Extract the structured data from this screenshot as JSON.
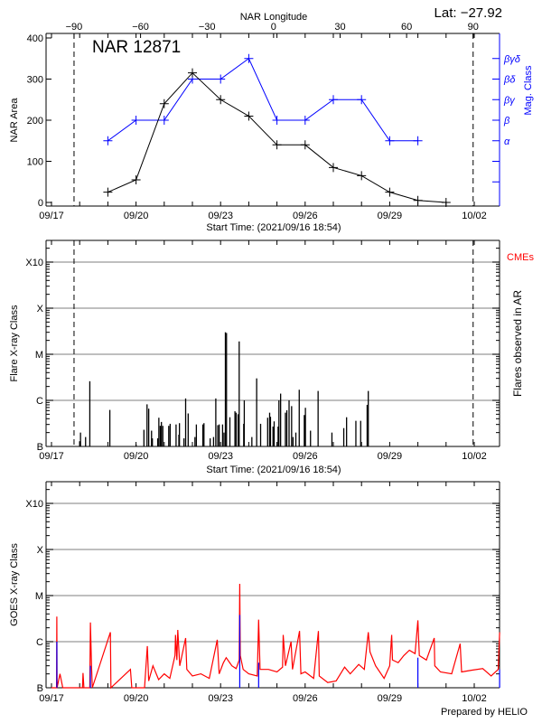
{
  "colors": {
    "area": "#000000",
    "mag_class": "#0000ff",
    "goes_long": "#ff0000",
    "goes_short": "#0000ff",
    "grid": "#999999",
    "cme_label": "#ff0000"
  },
  "footer": "Prepared by HELIO",
  "x_ticks": [
    "09/17",
    "09/20",
    "09/23",
    "09/26",
    "09/29",
    "10/02"
  ],
  "chart_data": [
    {
      "type": "line",
      "title": "NAR 12871",
      "annotation": "Lat: −27.92",
      "x_top_label": "NAR Longitude",
      "x_top_ticks": [
        -90,
        -60,
        -30,
        0,
        30,
        60,
        90
      ],
      "xlabel": "Start Time: (2021/09/16 18:54)",
      "ylabel": "NAR Area",
      "ylim": [
        0,
        400
      ],
      "yticks": [
        0,
        100,
        200,
        300,
        400
      ],
      "y2label": "Mag. Class",
      "y2_ticks": [
        {
          "label": "α",
          "level": 150
        },
        {
          "label": "β",
          "level": 200
        },
        {
          "label": "βγ",
          "level": 250
        },
        {
          "label": "βδ",
          "level": 300
        },
        {
          "label": "βγδ",
          "level": 350
        }
      ],
      "dashed_longitudes": [
        -90,
        90
      ],
      "area": {
        "dates": [
          "09/19",
          "09/20",
          "09/21",
          "09/22",
          "09/23",
          "09/24",
          "09/25",
          "09/26",
          "09/27",
          "09/28",
          "09/29",
          "09/30",
          "10/01"
        ],
        "values": [
          25,
          55,
          240,
          315,
          250,
          210,
          140,
          140,
          85,
          65,
          25,
          5,
          0
        ]
      },
      "mag_class": {
        "dates": [
          "09/19",
          "09/20",
          "09/21",
          "09/22",
          "09/23",
          "09/24",
          "09/25",
          "09/26",
          "09/27",
          "09/28",
          "09/29",
          "09/30"
        ],
        "values": [
          "α",
          "β",
          "β",
          "βδ",
          "βδ",
          "βγδ",
          "β",
          "β",
          "βγ",
          "βγ",
          "α",
          "α"
        ]
      }
    },
    {
      "type": "bar",
      "xlabel": "Start Time: (2021/09/16 18:54)",
      "ylabel": "Flare X-ray Class",
      "y2label": "Flares observed in AR",
      "cme_label": "CMEs",
      "yscale": "log",
      "yticks": [
        "B",
        "C",
        "M",
        "X",
        "X10"
      ],
      "grid": true,
      "dashed_longitudes": [
        -90,
        90
      ],
      "flares": [
        [
          "09/18 00:00",
          "B1.3"
        ],
        [
          "09/18 00:43",
          "B2.0"
        ],
        [
          "09/18 05:02",
          "B1.6"
        ],
        [
          "09/18 08:38",
          "C2.6"
        ],
        [
          "09/19 01:41",
          "B6.2"
        ],
        [
          "09/20 00:00",
          "B1.1"
        ],
        [
          "09/20 06:43",
          "B2.3"
        ],
        [
          "09/20 09:22",
          "B8.2"
        ],
        [
          "09/20 10:48",
          "B6.6"
        ],
        [
          "09/20 13:12",
          "B2.2"
        ],
        [
          "09/20 13:55",
          "B1.5"
        ],
        [
          "09/20 18:29",
          "B1.5"
        ],
        [
          "09/20 19:26",
          "B4.2"
        ],
        [
          "09/20 20:38",
          "B2.8"
        ],
        [
          "09/20 21:36",
          "B3.4"
        ],
        [
          "09/20 22:48",
          "B2.8"
        ],
        [
          "09/21 03:50",
          "B2.8"
        ],
        [
          "09/21 05:02",
          "B3.1"
        ],
        [
          "09/21 10:05",
          "B3.0"
        ],
        [
          "09/21 12:29",
          "B1.8"
        ],
        [
          "09/21 12:58",
          "B3.2"
        ],
        [
          "09/21 16:48",
          "B1.5"
        ],
        [
          "09/21 18:14",
          "C1.1"
        ],
        [
          "09/21 20:24",
          "B5.2"
        ],
        [
          "09/22 02:10",
          "B1.6"
        ],
        [
          "09/22 03:22",
          "B3.0"
        ],
        [
          "09/22 08:53",
          "B3.0"
        ],
        [
          "09/22 09:50",
          "B3.2"
        ],
        [
          "09/22 15:07",
          "B1.5"
        ],
        [
          "09/22 18:00",
          "B1.6"
        ],
        [
          "09/22 19:55",
          "C1.1"
        ],
        [
          "09/22 21:36",
          "B2.9"
        ],
        [
          "09/22 22:48",
          "B3.0"
        ],
        [
          "09/23 01:41",
          "B3.0"
        ],
        [
          "09/23 02:53",
          "B2.0"
        ],
        [
          "09/23 04:05",
          "M3.0"
        ],
        [
          "09/23 05:02",
          "M2.9"
        ],
        [
          "09/23 07:55",
          "B4.3"
        ],
        [
          "09/23 12:14",
          "B5.8"
        ],
        [
          "09/23 13:12",
          "B5.4"
        ],
        [
          "09/23 14:53",
          "B5.0"
        ],
        [
          "09/23 15:50",
          "M1.9"
        ],
        [
          "09/23 19:41",
          "B3.1"
        ],
        [
          "09/23 20:10",
          "C1.0"
        ],
        [
          "09/24 02:38",
          "B1.6"
        ],
        [
          "09/24 06:43",
          "C3.0"
        ],
        [
          "09/24 10:05",
          "B3.1"
        ],
        [
          "09/24 16:05",
          "B4.2"
        ],
        [
          "09/24 17:46",
          "B5.4"
        ],
        [
          "09/24 18:29",
          "B4.4"
        ],
        [
          "09/24 20:38",
          "B2.7"
        ],
        [
          "09/24 21:36",
          "B3.5"
        ],
        [
          "09/25 00:58",
          "B2.7"
        ],
        [
          "09/25 01:41",
          "C1.0"
        ],
        [
          "09/25 03:07",
          "C1.4"
        ],
        [
          "09/25 07:12",
          "B5.4"
        ],
        [
          "09/25 08:24",
          "B6.1"
        ],
        [
          "09/25 10:19",
          "C1.0"
        ],
        [
          "09/25 12:29",
          "B7.5"
        ],
        [
          "09/25 13:41",
          "B1.6"
        ],
        [
          "09/25 16:05",
          "B2.0"
        ],
        [
          "09/25 18:58",
          "C1.7"
        ],
        [
          "09/25 23:17",
          "B4.8"
        ],
        [
          "09/26 00:14",
          "B6.9"
        ],
        [
          "09/26 04:34",
          "B2.2"
        ],
        [
          "09/26 11:02",
          "C1.6"
        ],
        [
          "09/26 22:48",
          "B2.0"
        ],
        [
          "09/27 08:53",
          "B2.5"
        ],
        [
          "09/27 11:17",
          "B4.3"
        ],
        [
          "09/27 19:12",
          "B3.6"
        ],
        [
          "09/27 23:17",
          "B3.6"
        ],
        [
          "09/28 04:48",
          "B8.0"
        ],
        [
          "09/28 05:46",
          "C1.6"
        ]
      ]
    },
    {
      "type": "line",
      "ylabel": "GOES X-ray Class",
      "yscale": "log",
      "yticks": [
        "B",
        "C",
        "M",
        "X",
        "X10"
      ],
      "grid": true,
      "goes_long": [
        [
          "09/17 00:00",
          "B1.0"
        ],
        [
          "09/17 04:19",
          "B1.0"
        ],
        [
          "09/17 04:34",
          "C3.5"
        ],
        [
          "09/17 04:48",
          "B1.0"
        ],
        [
          "09/17 07:12",
          "B2.0"
        ],
        [
          "09/17 09:36",
          "B1.0"
        ],
        [
          "09/18 02:24",
          "B1.0"
        ],
        [
          "09/18 02:53",
          "B2.1"
        ],
        [
          "09/18 03:36",
          "B1.0"
        ],
        [
          "09/18 08:38",
          "B1.0"
        ],
        [
          "09/18 09:07",
          "C2.6"
        ],
        [
          "09/18 10:05",
          "B3.0"
        ],
        [
          "09/18 10:48",
          "B1.0"
        ],
        [
          "09/19 02:10",
          "C1.6"
        ],
        [
          "09/19 02:38",
          "B1.0"
        ],
        [
          "09/19 19:12",
          "B2.5"
        ],
        [
          "09/19 20:24",
          "B1.0"
        ],
        [
          "09/20 07:12",
          "B1.0"
        ],
        [
          "09/20 09:36",
          "B8.0"
        ],
        [
          "09/20 10:48",
          "B1.4"
        ],
        [
          "09/20 14:24",
          "B3.0"
        ],
        [
          "09/20 19:12",
          "B1.5"
        ],
        [
          "09/21 00:00",
          "B2.0"
        ],
        [
          "09/21 04:48",
          "B1.6"
        ],
        [
          "09/21 09:07",
          "B5.0"
        ],
        [
          "09/21 09:36",
          "C1.4"
        ],
        [
          "09/21 10:48",
          "B4.0"
        ],
        [
          "09/21 11:31",
          "C1.8"
        ],
        [
          "09/21 13:12",
          "B3.0"
        ],
        [
          "09/21 18:14",
          "C1.2"
        ],
        [
          "09/21 19:12",
          "B2.5"
        ],
        [
          "09/22 00:00",
          "B1.8"
        ],
        [
          "09/22 07:12",
          "B2.0"
        ],
        [
          "09/22 14:24",
          "B1.6"
        ],
        [
          "09/22 21:07",
          "C1.1"
        ],
        [
          "09/22 22:48",
          "B2.0"
        ],
        [
          "09/23 02:24",
          "B3.5"
        ],
        [
          "09/23 04:48",
          "B4.5"
        ],
        [
          "09/23 09:36",
          "B3.0"
        ],
        [
          "09/23 13:12",
          "B2.6"
        ],
        [
          "09/23 15:50",
          "B4.0"
        ],
        [
          "09/23 16:19",
          "M1.8"
        ],
        [
          "09/23 16:48",
          "B5.0"
        ],
        [
          "09/23 19:12",
          "B2.5"
        ],
        [
          "09/24 00:00",
          "B2.0"
        ],
        [
          "09/24 07:12",
          "B1.8"
        ],
        [
          "09/24 08:24",
          "C3.0"
        ],
        [
          "09/24 09:36",
          "B2.5"
        ],
        [
          "09/24 16:48",
          "B2.5"
        ],
        [
          "09/25 00:00",
          "B2.2"
        ],
        [
          "09/25 04:48",
          "B2.8"
        ],
        [
          "09/25 05:17",
          "C1.4"
        ],
        [
          "09/25 07:12",
          "B3.0"
        ],
        [
          "09/25 12:00",
          "C1.0"
        ],
        [
          "09/25 13:12",
          "B2.5"
        ],
        [
          "09/25 19:12",
          "C1.7"
        ],
        [
          "09/25 20:24",
          "B2.0"
        ],
        [
          "09/26 00:00",
          "B2.2"
        ],
        [
          "09/26 07:12",
          "B1.6"
        ],
        [
          "09/26 11:17",
          "C1.7"
        ],
        [
          "09/26 12:00",
          "B1.8"
        ],
        [
          "09/26 19:12",
          "B1.3"
        ],
        [
          "09/27 02:24",
          "B1.4"
        ],
        [
          "09/27 09:36",
          "B2.8"
        ],
        [
          "09/27 14:24",
          "B2.0"
        ],
        [
          "09/27 21:36",
          "B3.2"
        ],
        [
          "09/28 02:24",
          "B2.5"
        ],
        [
          "09/28 05:46",
          "C1.6"
        ],
        [
          "09/28 07:12",
          "B6.0"
        ],
        [
          "09/28 12:00",
          "B3.0"
        ],
        [
          "09/28 19:12",
          "B1.6"
        ],
        [
          "09/29 00:00",
          "B3.0"
        ],
        [
          "09/29 01:41",
          "C1.4"
        ],
        [
          "09/29 02:24",
          "B4.0"
        ],
        [
          "09/29 07:12",
          "B3.5"
        ],
        [
          "09/29 12:00",
          "B5.0"
        ],
        [
          "09/29 16:48",
          "B6.5"
        ],
        [
          "09/29 21:36",
          "B5.5"
        ],
        [
          "09/30 00:00",
          "C2.9"
        ],
        [
          "09/30 01:12",
          "B5.0"
        ],
        [
          "09/30 07:12",
          "B4.0"
        ],
        [
          "09/30 13:55",
          "C1.2"
        ],
        [
          "09/30 14:24",
          "B3.0"
        ],
        [
          "09/30 19:12",
          "B2.2"
        ],
        [
          "10/01 04:48",
          "B2.0"
        ],
        [
          "10/01 12:00",
          "C0.9"
        ],
        [
          "10/01 13:12",
          "B2.2"
        ],
        [
          "10/01 21:36",
          "B2.4"
        ],
        [
          "10/02 07:12",
          "B2.6"
        ],
        [
          "10/02 14:24",
          "B1.8"
        ],
        [
          "10/02 20:24",
          "B2.5"
        ],
        [
          "10/02 21:36",
          "C1.6"
        ]
      ],
      "goes_short": [
        [
          "09/17 04:34",
          "C1.0"
        ],
        [
          "09/18 09:07",
          "B3.0"
        ],
        [
          "09/23 16:19",
          "C3.8"
        ],
        [
          "09/24 08:24",
          "B3.5"
        ],
        [
          "09/30 00:00",
          "B4.5"
        ],
        [
          "10/02 21:36",
          "B2.5"
        ]
      ]
    }
  ]
}
